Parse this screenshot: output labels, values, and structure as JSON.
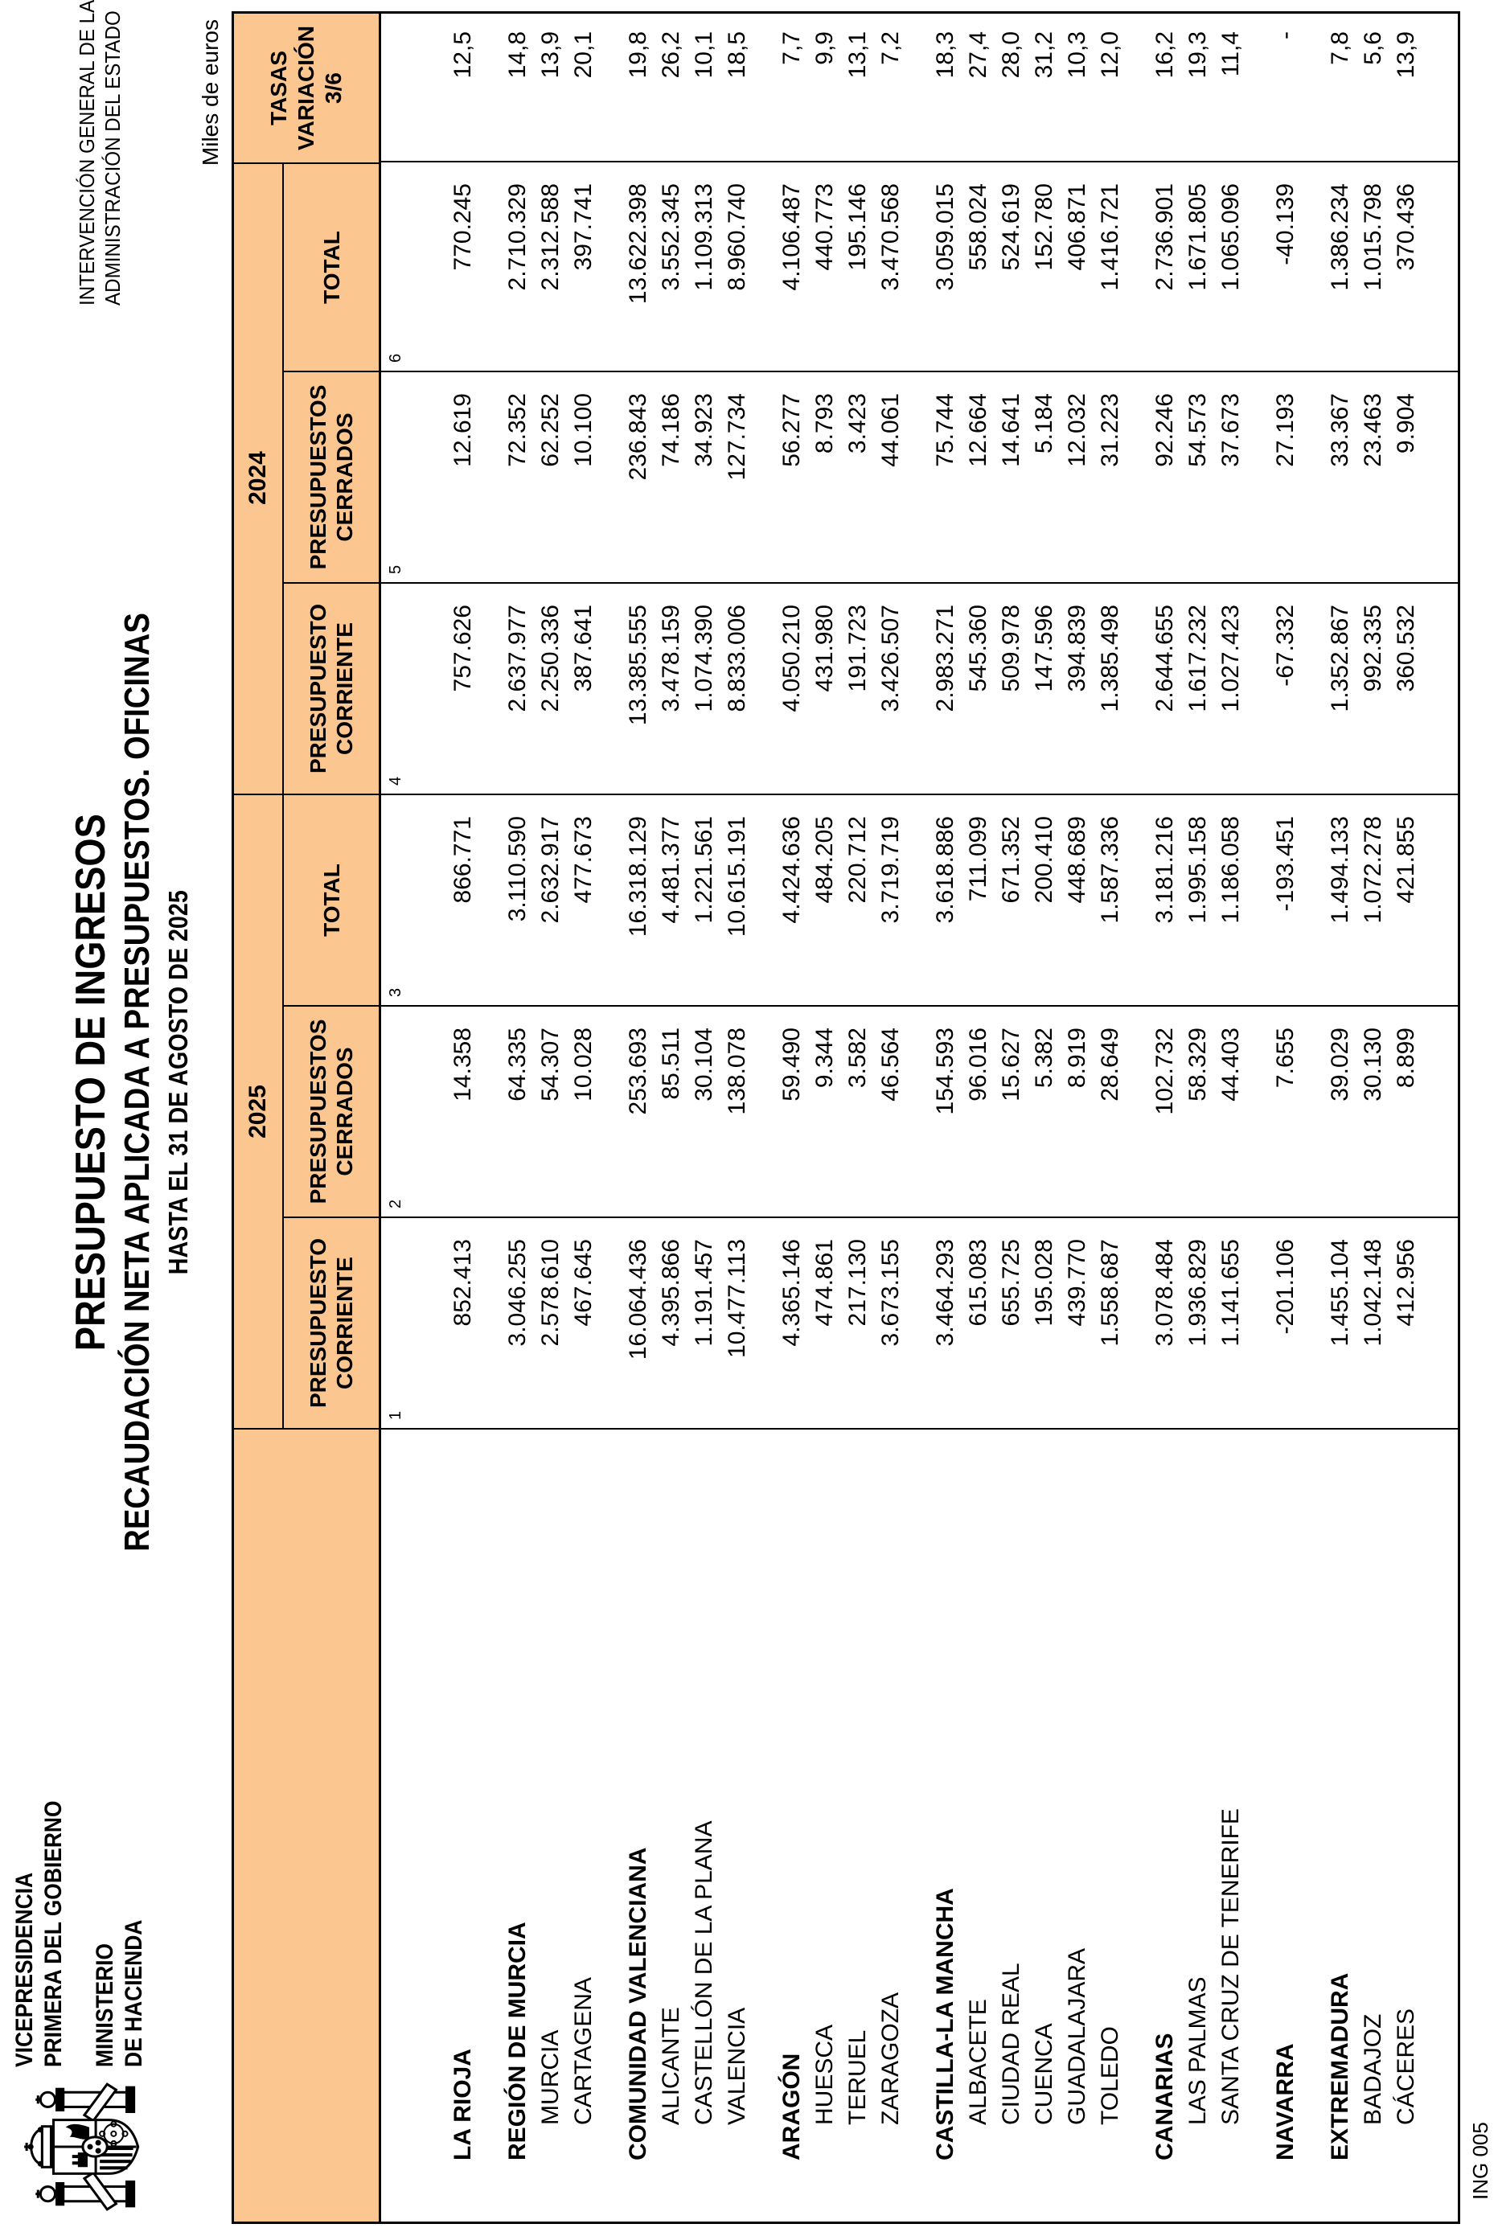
{
  "page": {
    "units_label": "Miles de euros",
    "form_code": "ING 005"
  },
  "colors": {
    "header_fill": "#FCC691",
    "border": "#000000",
    "text": "#000000",
    "page_bg": "#FFFFFF"
  },
  "letterhead": {
    "coat_of_arms_icon": "spanish-coat-of-arms",
    "line1": "VICEPRESIDENCIA",
    "line2": "PRIMERA DEL GOBIERNO",
    "line3": "MINISTERIO",
    "line4": "DE HACIENDA"
  },
  "agency": {
    "line1": "INTERVENCIÓN GENERAL DE LA",
    "line2": "ADMINISTRACIÓN DEL ESTADO"
  },
  "title": {
    "line1": "PRESUPUESTO DE INGRESOS",
    "line2": "RECAUDACIÓN NETA APLICADA A PRESUPUESTOS. OFICINAS",
    "line3": "HASTA EL 31 DE AGOSTO DE 2025"
  },
  "table": {
    "year_2025": "2025",
    "year_2024": "2024",
    "col_headers": {
      "c1": "PRESUPUESTO\nCORRIENTE",
      "c2": "PRESUPUESTOS\nCERRADOS",
      "c3": "TOTAL",
      "c4": "PRESUPUESTO\nCORRIENTE",
      "c5": "PRESUPUESTOS\nCERRADOS",
      "c6": "TOTAL",
      "tasas": "TASAS\nVARIACIÓN\n3/6"
    },
    "col_numbers": [
      "1",
      "2",
      "3",
      "4",
      "5",
      "6"
    ],
    "rows": [
      {
        "name": "LA RIOJA",
        "bold": true,
        "indent": false,
        "gap": false,
        "values": [
          "852.413",
          "14.358",
          "866.771",
          "757.626",
          "12.619",
          "770.245",
          "12,5"
        ]
      },
      {
        "name": "REGIÓN DE MURCIA",
        "bold": true,
        "indent": false,
        "gap": true,
        "values": [
          "3.046.255",
          "64.335",
          "3.110.590",
          "2.637.977",
          "72.352",
          "2.710.329",
          "14,8"
        ]
      },
      {
        "name": "MURCIA",
        "bold": false,
        "indent": true,
        "gap": false,
        "values": [
          "2.578.610",
          "54.307",
          "2.632.917",
          "2.250.336",
          "62.252",
          "2.312.588",
          "13,9"
        ]
      },
      {
        "name": "CARTAGENA",
        "bold": false,
        "indent": true,
        "gap": false,
        "values": [
          "467.645",
          "10.028",
          "477.673",
          "387.641",
          "10.100",
          "397.741",
          "20,1"
        ]
      },
      {
        "name": "COMUNIDAD VALENCIANA",
        "bold": true,
        "indent": false,
        "gap": true,
        "values": [
          "16.064.436",
          "253.693",
          "16.318.129",
          "13.385.555",
          "236.843",
          "13.622.398",
          "19,8"
        ]
      },
      {
        "name": "ALICANTE",
        "bold": false,
        "indent": true,
        "gap": false,
        "values": [
          "4.395.866",
          "85.511",
          "4.481.377",
          "3.478.159",
          "74.186",
          "3.552.345",
          "26,2"
        ]
      },
      {
        "name": "CASTELLÓN DE LA PLANA",
        "bold": false,
        "indent": true,
        "gap": false,
        "values": [
          "1.191.457",
          "30.104",
          "1.221.561",
          "1.074.390",
          "34.923",
          "1.109.313",
          "10,1"
        ]
      },
      {
        "name": "VALENCIA",
        "bold": false,
        "indent": true,
        "gap": false,
        "values": [
          "10.477.113",
          "138.078",
          "10.615.191",
          "8.833.006",
          "127.734",
          "8.960.740",
          "18,5"
        ]
      },
      {
        "name": "ARAGÓN",
        "bold": true,
        "indent": false,
        "gap": true,
        "values": [
          "4.365.146",
          "59.490",
          "4.424.636",
          "4.050.210",
          "56.277",
          "4.106.487",
          "7,7"
        ]
      },
      {
        "name": "HUESCA",
        "bold": false,
        "indent": true,
        "gap": false,
        "values": [
          "474.861",
          "9.344",
          "484.205",
          "431.980",
          "8.793",
          "440.773",
          "9,9"
        ]
      },
      {
        "name": "TERUEL",
        "bold": false,
        "indent": true,
        "gap": false,
        "values": [
          "217.130",
          "3.582",
          "220.712",
          "191.723",
          "3.423",
          "195.146",
          "13,1"
        ]
      },
      {
        "name": "ZARAGOZA",
        "bold": false,
        "indent": true,
        "gap": false,
        "values": [
          "3.673.155",
          "46.564",
          "3.719.719",
          "3.426.507",
          "44.061",
          "3.470.568",
          "7,2"
        ]
      },
      {
        "name": "CASTILLA-LA MANCHA",
        "bold": true,
        "indent": false,
        "gap": true,
        "values": [
          "3.464.293",
          "154.593",
          "3.618.886",
          "2.983.271",
          "75.744",
          "3.059.015",
          "18,3"
        ]
      },
      {
        "name": "ALBACETE",
        "bold": false,
        "indent": true,
        "gap": false,
        "values": [
          "615.083",
          "96.016",
          "711.099",
          "545.360",
          "12.664",
          "558.024",
          "27,4"
        ]
      },
      {
        "name": "CIUDAD REAL",
        "bold": false,
        "indent": true,
        "gap": false,
        "values": [
          "655.725",
          "15.627",
          "671.352",
          "509.978",
          "14.641",
          "524.619",
          "28,0"
        ]
      },
      {
        "name": "CUENCA",
        "bold": false,
        "indent": true,
        "gap": false,
        "values": [
          "195.028",
          "5.382",
          "200.410",
          "147.596",
          "5.184",
          "152.780",
          "31,2"
        ]
      },
      {
        "name": "GUADALAJARA",
        "bold": false,
        "indent": true,
        "gap": false,
        "values": [
          "439.770",
          "8.919",
          "448.689",
          "394.839",
          "12.032",
          "406.871",
          "10,3"
        ]
      },
      {
        "name": "TOLEDO",
        "bold": false,
        "indent": true,
        "gap": false,
        "values": [
          "1.558.687",
          "28.649",
          "1.587.336",
          "1.385.498",
          "31.223",
          "1.416.721",
          "12,0"
        ]
      },
      {
        "name": "CANARIAS",
        "bold": true,
        "indent": false,
        "gap": true,
        "values": [
          "3.078.484",
          "102.732",
          "3.181.216",
          "2.644.655",
          "92.246",
          "2.736.901",
          "16,2"
        ]
      },
      {
        "name": "LAS PALMAS",
        "bold": false,
        "indent": true,
        "gap": false,
        "values": [
          "1.936.829",
          "58.329",
          "1.995.158",
          "1.617.232",
          "54.573",
          "1.671.805",
          "19,3"
        ]
      },
      {
        "name": "SANTA CRUZ DE TENERIFE",
        "bold": false,
        "indent": true,
        "gap": false,
        "values": [
          "1.141.655",
          "44.403",
          "1.186.058",
          "1.027.423",
          "37.673",
          "1.065.096",
          "11,4"
        ]
      },
      {
        "name": "NAVARRA",
        "bold": true,
        "indent": false,
        "gap": true,
        "values": [
          "-201.106",
          "7.655",
          "-193.451",
          "-67.332",
          "27.193",
          "-40.139",
          "-"
        ]
      },
      {
        "name": "EXTREMADURA",
        "bold": true,
        "indent": false,
        "gap": true,
        "values": [
          "1.455.104",
          "39.029",
          "1.494.133",
          "1.352.867",
          "33.367",
          "1.386.234",
          "7,8"
        ]
      },
      {
        "name": "BADAJOZ",
        "bold": false,
        "indent": true,
        "gap": false,
        "values": [
          "1.042.148",
          "30.130",
          "1.072.278",
          "992.335",
          "23.463",
          "1.015.798",
          "5,6"
        ]
      },
      {
        "name": "CÁCERES",
        "bold": false,
        "indent": true,
        "gap": false,
        "values": [
          "412.956",
          "8.899",
          "421.855",
          "360.532",
          "9.904",
          "370.436",
          "13,9"
        ]
      }
    ]
  }
}
